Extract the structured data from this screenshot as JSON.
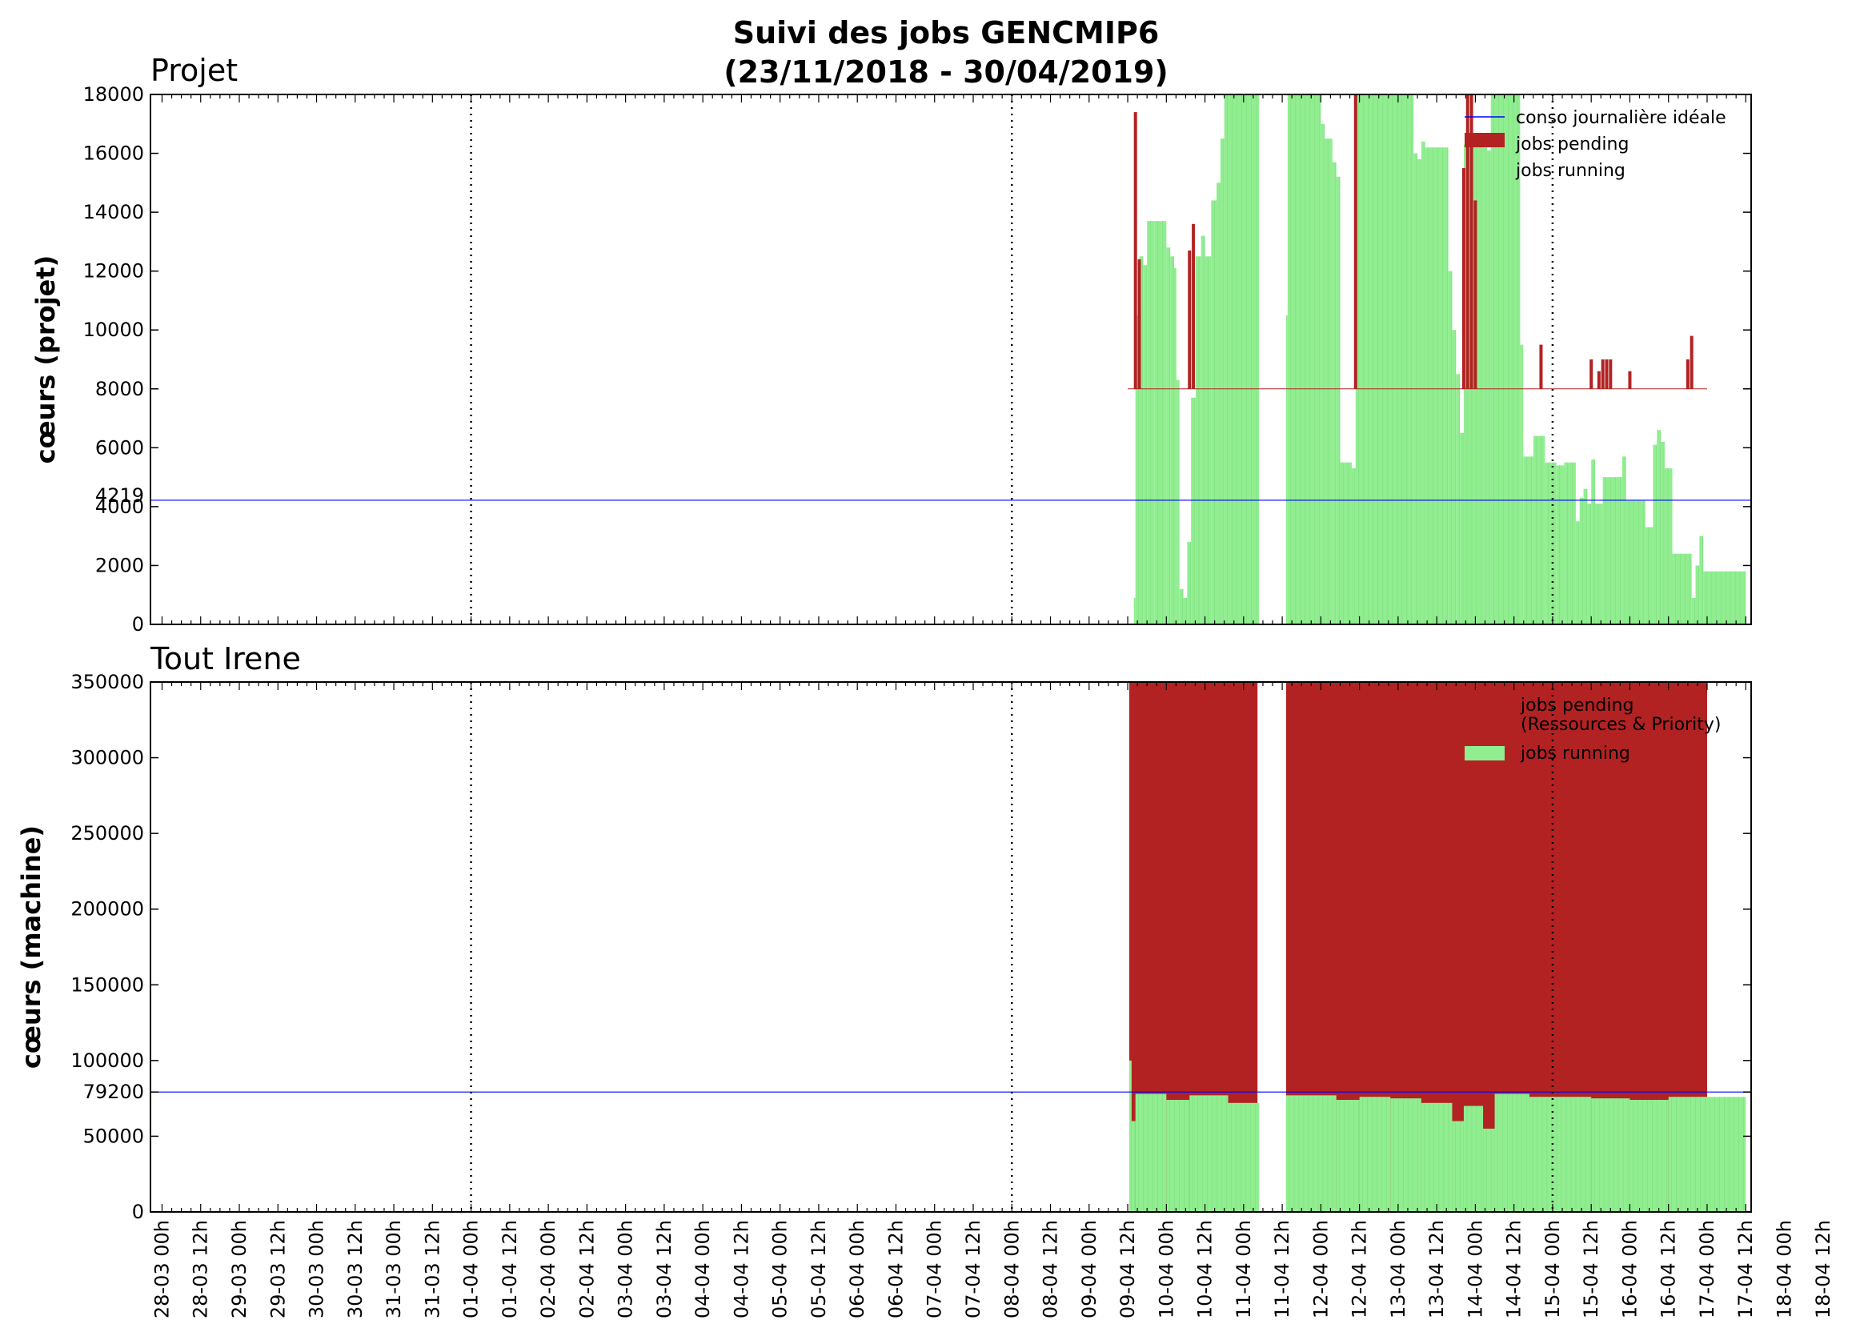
{
  "title_line1": "Suivi des jobs GENCMIP6",
  "title_line2": "(23/11/2018 - 30/04/2019)",
  "colors": {
    "running": "#90ee90",
    "pending": "#b22222",
    "ideal": "#0000ff"
  },
  "x_labels": [
    "28-03 00h",
    "28-03 12h",
    "29-03 00h",
    "29-03 12h",
    "30-03 00h",
    "30-03 12h",
    "31-03 00h",
    "31-03 12h",
    "01-04 00h",
    "01-04 12h",
    "02-04 00h",
    "02-04 12h",
    "03-04 00h",
    "03-04 12h",
    "04-04 00h",
    "04-04 12h",
    "05-04 00h",
    "05-04 12h",
    "06-04 00h",
    "06-04 12h",
    "07-04 00h",
    "07-04 12h",
    "08-04 00h",
    "08-04 12h",
    "09-04 00h",
    "09-04 12h",
    "10-04 00h",
    "10-04 12h",
    "11-04 00h",
    "11-04 12h",
    "12-04 00h",
    "12-04 12h",
    "13-04 00h",
    "13-04 12h",
    "14-04 00h",
    "14-04 12h",
    "15-04 00h",
    "15-04 12h",
    "16-04 00h",
    "16-04 12h",
    "17-04 00h",
    "17-04 12h",
    "18-04 00h",
    "18-04 12h"
  ],
  "chart_data": [
    {
      "type": "bar",
      "panel_title": "Projet",
      "ylabel": "cœurs (projet)",
      "ylim": [
        0,
        18000
      ],
      "yticks": [
        0,
        2000,
        4000,
        6000,
        8000,
        10000,
        12000,
        14000,
        16000,
        18000
      ],
      "ideal_value": 4219,
      "ideal_label": "4219",
      "legend": [
        "conso journalière idéale",
        "jobs pending",
        "jobs running"
      ],
      "running_segments": [
        [
          9.55,
          0
        ],
        [
          9.58,
          900
        ],
        [
          9.6,
          10500
        ],
        [
          9.65,
          12500
        ],
        [
          9.7,
          12200
        ],
        [
          9.75,
          13700
        ],
        [
          9.85,
          13700
        ],
        [
          10.0,
          12800
        ],
        [
          10.05,
          12500
        ],
        [
          10.1,
          12100
        ],
        [
          10.13,
          8300
        ],
        [
          10.17,
          1200
        ],
        [
          10.22,
          900
        ],
        [
          10.27,
          2800
        ],
        [
          10.32,
          7700
        ],
        [
          10.38,
          12500
        ],
        [
          10.45,
          13200
        ],
        [
          10.5,
          12500
        ],
        [
          10.58,
          14400
        ],
        [
          10.65,
          15000
        ],
        [
          10.7,
          16500
        ],
        [
          10.75,
          18000
        ],
        [
          11.2,
          0
        ],
        [
          11.55,
          10500
        ],
        [
          11.57,
          18000
        ],
        [
          12.0,
          17000
        ],
        [
          12.05,
          16500
        ],
        [
          12.15,
          15700
        ],
        [
          12.2,
          15200
        ],
        [
          12.25,
          5500
        ],
        [
          12.4,
          5300
        ],
        [
          12.45,
          18000
        ],
        [
          13.2,
          16000
        ],
        [
          13.25,
          15800
        ],
        [
          13.3,
          16400
        ],
        [
          13.35,
          16200
        ],
        [
          13.65,
          12000
        ],
        [
          13.7,
          10000
        ],
        [
          13.75,
          8500
        ],
        [
          13.8,
          6500
        ],
        [
          13.85,
          16300
        ],
        [
          14.15,
          16100
        ],
        [
          14.2,
          18000
        ],
        [
          14.58,
          9500
        ],
        [
          14.62,
          5700
        ],
        [
          14.75,
          6400
        ],
        [
          14.9,
          5500
        ],
        [
          15.05,
          5400
        ],
        [
          15.15,
          5500
        ],
        [
          15.3,
          3500
        ],
        [
          15.35,
          4300
        ],
        [
          15.4,
          4600
        ],
        [
          15.45,
          4100
        ],
        [
          15.5,
          5600
        ],
        [
          15.55,
          4100
        ],
        [
          15.65,
          5000
        ],
        [
          15.9,
          5700
        ],
        [
          15.95,
          4200
        ],
        [
          16.2,
          3300
        ],
        [
          16.3,
          6100
        ],
        [
          16.35,
          6600
        ],
        [
          16.4,
          6200
        ],
        [
          16.45,
          5300
        ],
        [
          16.55,
          2400
        ],
        [
          16.8,
          900
        ],
        [
          16.85,
          2000
        ],
        [
          16.9,
          3000
        ],
        [
          16.95,
          1800
        ]
      ],
      "pending_spikes": [
        [
          9.6,
          17400
        ],
        [
          9.65,
          12400
        ],
        [
          10.3,
          12700
        ],
        [
          10.35,
          13600
        ],
        [
          12.45,
          18000
        ],
        [
          13.85,
          15500
        ],
        [
          13.9,
          18000
        ],
        [
          13.95,
          18000
        ],
        [
          14.0,
          14400
        ],
        [
          14.85,
          9500
        ],
        [
          15.5,
          9000
        ],
        [
          15.6,
          8600
        ],
        [
          15.65,
          9000
        ],
        [
          15.7,
          9000
        ],
        [
          15.75,
          9000
        ],
        [
          16.0,
          8600
        ],
        [
          16.75,
          9000
        ],
        [
          16.8,
          9800
        ]
      ],
      "pending_baseline": 8000
    },
    {
      "type": "bar",
      "panel_title": "Tout Irene",
      "ylabel": "cœurs (machine)",
      "ylim": [
        0,
        350000
      ],
      "yticks": [
        0,
        50000,
        79200,
        100000,
        150000,
        200000,
        250000,
        300000,
        350000
      ],
      "ideal_value": 79200,
      "legend": [
        "jobs pending",
        "(Ressources & Priority)",
        "jobs running"
      ],
      "running_segments": [
        [
          9.52,
          100000
        ],
        [
          9.55,
          60000
        ],
        [
          9.6,
          78000
        ],
        [
          10.0,
          74000
        ],
        [
          10.3,
          77000
        ],
        [
          10.8,
          72000
        ],
        [
          11.2,
          0
        ],
        [
          11.55,
          77000
        ],
        [
          12.2,
          74000
        ],
        [
          12.5,
          76000
        ],
        [
          12.9,
          75000
        ],
        [
          13.3,
          72000
        ],
        [
          13.7,
          60000
        ],
        [
          13.85,
          70000
        ],
        [
          14.1,
          55000
        ],
        [
          14.25,
          78000
        ],
        [
          14.7,
          76000
        ],
        [
          15.5,
          75000
        ],
        [
          16.0,
          74000
        ],
        [
          16.5,
          76000
        ]
      ],
      "pending_blocks": [
        [
          9.52,
          11.18,
          350000
        ],
        [
          11.55,
          17.0,
          350000
        ]
      ]
    }
  ]
}
